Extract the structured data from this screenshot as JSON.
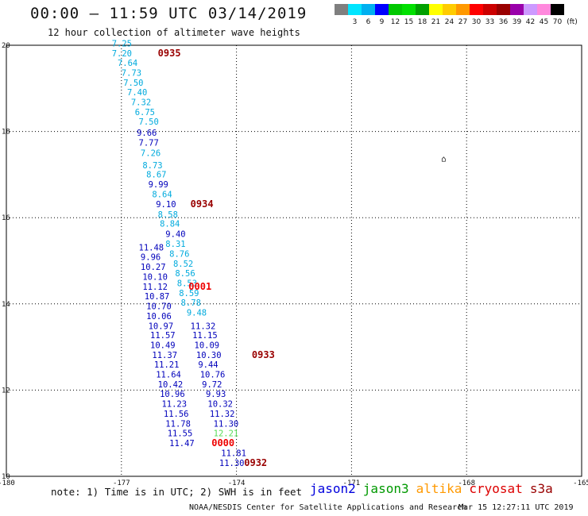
{
  "header": {
    "title": "00:00 – 11:59 UTC 03/14/2019",
    "subtitle": "12 hour collection of altimeter wave heights"
  },
  "colorbar": {
    "unit": "(ft)",
    "bins": [
      {
        "label": "",
        "color": "#7f7f7f"
      },
      {
        "label": "3",
        "color": "#00e5ff"
      },
      {
        "label": "6",
        "color": "#00b0f0"
      },
      {
        "label": "9",
        "color": "#0000ff"
      },
      {
        "label": "12",
        "color": "#00c800"
      },
      {
        "label": "15",
        "color": "#00e000"
      },
      {
        "label": "18",
        "color": "#00a000"
      },
      {
        "label": "21",
        "color": "#ffff00"
      },
      {
        "label": "24",
        "color": "#ffcc00"
      },
      {
        "label": "27",
        "color": "#ff9900"
      },
      {
        "label": "30",
        "color": "#ff0000"
      },
      {
        "label": "33",
        "color": "#cc0000"
      },
      {
        "label": "36",
        "color": "#990000"
      },
      {
        "label": "39",
        "color": "#9900aa"
      },
      {
        "label": "42",
        "color": "#cc99ff"
      },
      {
        "label": "45",
        "color": "#ff88dd"
      },
      {
        "label": "70",
        "color": "#000000"
      }
    ]
  },
  "map": {
    "lon_range": [
      -180,
      -165
    ],
    "lat_range": [
      10,
      20
    ],
    "x_ticks": [
      "-180",
      "-177",
      "-174",
      "-171",
      "-168",
      "-165"
    ],
    "y_ticks": [
      "20",
      "18",
      "16",
      "14",
      "12",
      "10"
    ],
    "x_tick_values": [
      -180,
      -177,
      -174,
      -171,
      -168,
      -165
    ],
    "y_tick_values": [
      20,
      18,
      16,
      14,
      12,
      10
    ],
    "island_symbol": "⌂",
    "island_lon": -168.6,
    "island_lat": 17.3
  },
  "chart_data": {
    "type": "scatter",
    "xlabel": "",
    "ylabel": "",
    "xlim": [
      -180,
      -165
    ],
    "ylim": [
      10,
      20
    ],
    "series": [
      {
        "color": "#00aadd",
        "points": [
          {
            "lon": -177.25,
            "lat": 19.97,
            "value": "7.25"
          },
          {
            "lon": -177.25,
            "lat": 19.74,
            "value": "7.20"
          },
          {
            "lon": -177.1,
            "lat": 19.52,
            "value": "7.64"
          },
          {
            "lon": -177.0,
            "lat": 19.29,
            "value": "7.73"
          },
          {
            "lon": -176.95,
            "lat": 19.06,
            "value": "7.50"
          },
          {
            "lon": -176.85,
            "lat": 18.84,
            "value": "7.40"
          },
          {
            "lon": -176.75,
            "lat": 18.61,
            "value": "7.32"
          },
          {
            "lon": -176.65,
            "lat": 18.38,
            "value": "6.75"
          },
          {
            "lon": -176.55,
            "lat": 18.16,
            "value": "7.50"
          },
          {
            "lon": -176.5,
            "lat": 17.43,
            "value": "7.26"
          },
          {
            "lon": -176.45,
            "lat": 17.15,
            "value": "8.73"
          },
          {
            "lon": -176.35,
            "lat": 16.93,
            "value": "8.67"
          },
          {
            "lon": -176.2,
            "lat": 16.47,
            "value": "8.64"
          },
          {
            "lon": -176.05,
            "lat": 16.0,
            "value": "8.58"
          },
          {
            "lon": -176.0,
            "lat": 15.79,
            "value": "8.84"
          },
          {
            "lon": -175.85,
            "lat": 15.32,
            "value": "8.31"
          },
          {
            "lon": -175.75,
            "lat": 15.09,
            "value": "8.76"
          },
          {
            "lon": -175.65,
            "lat": 14.86,
            "value": "8.52"
          },
          {
            "lon": -175.6,
            "lat": 14.64,
            "value": "8.56"
          },
          {
            "lon": -175.55,
            "lat": 14.41,
            "value": "8.53"
          },
          {
            "lon": -175.5,
            "lat": 14.18,
            "value": "8.59"
          },
          {
            "lon": -175.45,
            "lat": 13.96,
            "value": "8.78"
          },
          {
            "lon": -175.3,
            "lat": 13.73,
            "value": "9.48"
          }
        ]
      },
      {
        "color": "#0000bb",
        "points": [
          {
            "lon": -176.6,
            "lat": 17.9,
            "value": "9.66"
          },
          {
            "lon": -176.55,
            "lat": 17.67,
            "value": "7.77"
          },
          {
            "lon": -176.3,
            "lat": 16.7,
            "value": "9.99"
          },
          {
            "lon": -176.1,
            "lat": 16.24,
            "value": "9.10"
          },
          {
            "lon": -175.85,
            "lat": 15.55,
            "value": "9.40"
          },
          {
            "lon": -176.55,
            "lat": 15.24,
            "value": "11.48"
          },
          {
            "lon": -176.5,
            "lat": 15.02,
            "value": "9.96"
          },
          {
            "lon": -176.5,
            "lat": 14.79,
            "value": "10.27"
          },
          {
            "lon": -176.45,
            "lat": 14.56,
            "value": "10.10"
          },
          {
            "lon": -176.45,
            "lat": 14.33,
            "value": "11.12"
          },
          {
            "lon": -176.4,
            "lat": 14.11,
            "value": "10.87"
          },
          {
            "lon": -176.35,
            "lat": 13.88,
            "value": "10.70"
          },
          {
            "lon": -176.35,
            "lat": 13.65,
            "value": "10.06"
          },
          {
            "lon": -176.3,
            "lat": 13.42,
            "value": "10.97"
          },
          {
            "lon": -176.25,
            "lat": 13.2,
            "value": "11.57"
          },
          {
            "lon": -176.25,
            "lat": 12.97,
            "value": "10.49"
          },
          {
            "lon": -176.2,
            "lat": 12.74,
            "value": "11.37"
          },
          {
            "lon": -176.15,
            "lat": 12.52,
            "value": "11.21"
          },
          {
            "lon": -176.1,
            "lat": 12.29,
            "value": "11.64"
          },
          {
            "lon": -176.05,
            "lat": 12.06,
            "value": "10.42"
          },
          {
            "lon": -176.0,
            "lat": 11.84,
            "value": "10.96"
          },
          {
            "lon": -175.95,
            "lat": 11.61,
            "value": "11.23"
          },
          {
            "lon": -175.9,
            "lat": 11.38,
            "value": "11.56"
          },
          {
            "lon": -175.85,
            "lat": 11.15,
            "value": "11.78"
          },
          {
            "lon": -175.8,
            "lat": 10.93,
            "value": "11.55"
          },
          {
            "lon": -175.75,
            "lat": 10.7,
            "value": "11.47"
          },
          {
            "lon": -175.2,
            "lat": 13.42,
            "value": "11.32"
          },
          {
            "lon": -175.15,
            "lat": 13.2,
            "value": "11.15"
          },
          {
            "lon": -175.1,
            "lat": 12.97,
            "value": "10.09"
          },
          {
            "lon": -175.05,
            "lat": 12.74,
            "value": "10.30"
          },
          {
            "lon": -175.0,
            "lat": 12.52,
            "value": "9.44"
          },
          {
            "lon": -174.95,
            "lat": 12.29,
            "value": "10.76"
          },
          {
            "lon": -174.9,
            "lat": 12.06,
            "value": "9.72"
          },
          {
            "lon": -174.8,
            "lat": 11.84,
            "value": "9.93"
          },
          {
            "lon": -174.75,
            "lat": 11.61,
            "value": "10.32"
          },
          {
            "lon": -174.7,
            "lat": 11.38,
            "value": "11.32"
          },
          {
            "lon": -174.6,
            "lat": 11.15,
            "value": "11.30"
          },
          {
            "lon": -174.4,
            "lat": 10.47,
            "value": "11.81"
          },
          {
            "lon": -174.45,
            "lat": 10.24,
            "value": "11.30"
          }
        ]
      },
      {
        "color": "#55dd55",
        "points": [
          {
            "lon": -174.6,
            "lat": 10.93,
            "value": "12.21"
          }
        ]
      }
    ],
    "times": [
      {
        "label": "0935",
        "lon": -176.05,
        "lat": 19.74,
        "color": "#990000"
      },
      {
        "label": "0934",
        "lon": -175.2,
        "lat": 16.24,
        "color": "#990000"
      },
      {
        "label": "0001",
        "lon": -175.25,
        "lat": 14.33,
        "color": "#ee0000"
      },
      {
        "label": "0933",
        "lon": -173.6,
        "lat": 12.74,
        "color": "#990000"
      },
      {
        "label": "0000",
        "lon": -174.65,
        "lat": 10.7,
        "color": "#ee0000"
      },
      {
        "label": "0932",
        "lon": -173.8,
        "lat": 10.24,
        "color": "#990000"
      }
    ]
  },
  "footer": {
    "note": "note: 1) Time is in UTC; 2) SWH is in feet",
    "legend": [
      {
        "label": "jason2",
        "color": "#0000dd"
      },
      {
        "label": "jason3",
        "color": "#009900"
      },
      {
        "label": "altika",
        "color": "#ff9900"
      },
      {
        "label": "cryosat",
        "color": "#dd0000"
      },
      {
        "label": "s3a",
        "color": "#990000"
      }
    ],
    "credit": "NOAA/NESDIS Center for Satellite Applications and Research",
    "timestamp": "Mar 15 12:27:11 UTC 2019"
  }
}
